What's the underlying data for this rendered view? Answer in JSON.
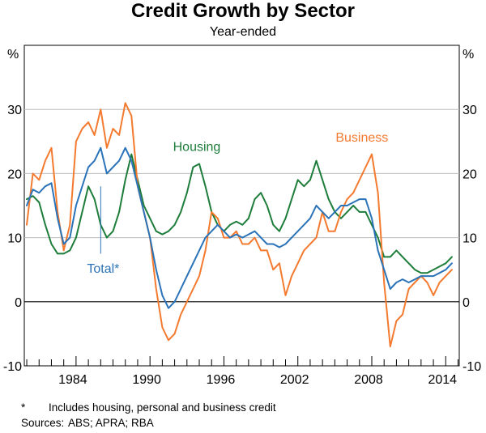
{
  "title": "Credit Growth by Sector",
  "subtitle": "Year-ended",
  "footnote_mark": "*",
  "footnote_text": "Includes housing, personal and business credit",
  "sources_label": "Sources:",
  "sources_text": "ABS; APRA; RBA",
  "colors": {
    "housing": "#1e7d3a",
    "business": "#f47a2f",
    "total": "#2b73b8",
    "zero_line": "#000000",
    "grid": "#bdbdbd"
  },
  "chart_data": {
    "type": "line",
    "title": "Credit Growth by Sector",
    "subtitle": "Year-ended",
    "y_unit_left": "%",
    "y_unit_right": "%",
    "ylim": [
      -10,
      40
    ],
    "y_ticks": [
      -10,
      0,
      10,
      20,
      30
    ],
    "xlim": [
      1979.8,
      2015.1
    ],
    "x_tick_labels": [
      "1984",
      "1990",
      "1996",
      "2002",
      "2008",
      "2014"
    ],
    "x_tick_values": [
      1984,
      1990,
      1996,
      2002,
      2008,
      2014
    ],
    "grid": true,
    "series": [
      {
        "name": "Housing",
        "label": "Housing",
        "color": "#1e7d3a",
        "x": [
          1980.0,
          1980.5,
          1981.0,
          1981.5,
          1982.0,
          1982.5,
          1983.0,
          1983.5,
          1984.0,
          1984.5,
          1985.0,
          1985.5,
          1986.0,
          1986.5,
          1987.0,
          1987.5,
          1988.0,
          1988.5,
          1989.0,
          1989.5,
          1990.0,
          1990.5,
          1991.0,
          1991.5,
          1992.0,
          1992.5,
          1993.0,
          1993.5,
          1994.0,
          1994.5,
          1995.0,
          1995.5,
          1996.0,
          1996.5,
          1997.0,
          1997.5,
          1998.0,
          1998.5,
          1999.0,
          1999.5,
          2000.0,
          2000.5,
          2001.0,
          2001.5,
          2002.0,
          2002.5,
          2003.0,
          2003.5,
          2004.0,
          2004.5,
          2005.0,
          2005.5,
          2006.0,
          2006.5,
          2007.0,
          2007.5,
          2008.0,
          2008.5,
          2009.0,
          2009.5,
          2010.0,
          2010.5,
          2011.0,
          2011.5,
          2012.0,
          2012.5,
          2013.0,
          2013.5,
          2014.0,
          2014.5
        ],
        "y": [
          16,
          16.5,
          15.5,
          12,
          9,
          7.5,
          7.5,
          8,
          10,
          14,
          18,
          16,
          12,
          10,
          11,
          14,
          19,
          23,
          19,
          15,
          13,
          11,
          10.5,
          11,
          12,
          14,
          17,
          21,
          21.5,
          18,
          14,
          12,
          11,
          12,
          12.5,
          12,
          13,
          16,
          17,
          15,
          12,
          11,
          13,
          16,
          19,
          18,
          19,
          22,
          19,
          16,
          14,
          13,
          14,
          15,
          14,
          14,
          12,
          10,
          7,
          7,
          8,
          7,
          6,
          5,
          4.5,
          4.5,
          5,
          5.5,
          6,
          7
        ]
      },
      {
        "name": "Business",
        "label": "Business",
        "color": "#f47a2f",
        "x": [
          1980.0,
          1980.5,
          1981.0,
          1981.5,
          1982.0,
          1982.5,
          1983.0,
          1983.5,
          1984.0,
          1984.5,
          1985.0,
          1985.5,
          1986.0,
          1986.5,
          1987.0,
          1987.5,
          1988.0,
          1988.5,
          1989.0,
          1989.5,
          1990.0,
          1990.5,
          1991.0,
          1991.5,
          1992.0,
          1992.5,
          1993.0,
          1993.5,
          1994.0,
          1994.5,
          1995.0,
          1995.5,
          1996.0,
          1996.5,
          1997.0,
          1997.5,
          1998.0,
          1998.5,
          1999.0,
          1999.5,
          2000.0,
          2000.5,
          2001.0,
          2001.5,
          2002.0,
          2002.5,
          2003.0,
          2003.5,
          2004.0,
          2004.5,
          2005.0,
          2005.5,
          2006.0,
          2006.5,
          2007.0,
          2007.5,
          2008.0,
          2008.5,
          2009.0,
          2009.5,
          2010.0,
          2010.5,
          2011.0,
          2011.5,
          2012.0,
          2012.5,
          2013.0,
          2013.5,
          2014.0,
          2014.5
        ],
        "y": [
          12,
          20,
          19,
          22,
          24,
          14,
          8,
          12,
          25,
          27,
          28,
          26,
          30,
          24,
          27,
          26,
          31,
          29,
          18,
          14,
          10,
          2,
          -4,
          -6,
          -5,
          -2,
          0,
          2,
          4,
          8,
          14,
          13,
          10,
          10,
          11,
          9,
          9,
          10,
          8,
          8,
          5,
          6,
          1,
          4,
          6,
          8,
          9,
          10,
          14,
          11,
          11,
          14,
          16,
          17,
          19,
          21,
          23,
          17,
          3,
          -7,
          -3,
          -2,
          2,
          3,
          4,
          3,
          1,
          3,
          4,
          5
        ]
      },
      {
        "name": "Total*",
        "label": "Total*",
        "color": "#2b73b8",
        "x": [
          1980.0,
          1980.5,
          1981.0,
          1981.5,
          1982.0,
          1982.5,
          1983.0,
          1983.5,
          1984.0,
          1984.5,
          1985.0,
          1985.5,
          1986.0,
          1986.5,
          1987.0,
          1987.5,
          1988.0,
          1988.5,
          1989.0,
          1989.5,
          1990.0,
          1990.5,
          1991.0,
          1991.5,
          1992.0,
          1992.5,
          1993.0,
          1993.5,
          1994.0,
          1994.5,
          1995.0,
          1995.5,
          1996.0,
          1996.5,
          1997.0,
          1997.5,
          1998.0,
          1998.5,
          1999.0,
          1999.5,
          2000.0,
          2000.5,
          2001.0,
          2001.5,
          2002.0,
          2002.5,
          2003.0,
          2003.5,
          2004.0,
          2004.5,
          2005.0,
          2005.5,
          2006.0,
          2006.5,
          2007.0,
          2007.5,
          2008.0,
          2008.5,
          2009.0,
          2009.5,
          2010.0,
          2010.5,
          2011.0,
          2011.5,
          2012.0,
          2012.5,
          2013.0,
          2013.5,
          2014.0,
          2014.5
        ],
        "y": [
          15,
          17.5,
          17,
          18,
          18.5,
          13,
          9,
          10,
          15,
          18,
          21,
          22,
          24,
          20,
          21,
          22,
          24,
          22,
          18,
          14,
          10,
          5,
          1,
          -1,
          0,
          2,
          4,
          6,
          8,
          10,
          11,
          12,
          11,
          10,
          10.5,
          10,
          10.5,
          11,
          10,
          9,
          9,
          8.5,
          9,
          10,
          11,
          12,
          13,
          15,
          14,
          13,
          14,
          15,
          15,
          15.5,
          16,
          16,
          13,
          8,
          5,
          2,
          3,
          3.5,
          3,
          3.5,
          4,
          4,
          4,
          4.5,
          5,
          6
        ]
      }
    ]
  }
}
